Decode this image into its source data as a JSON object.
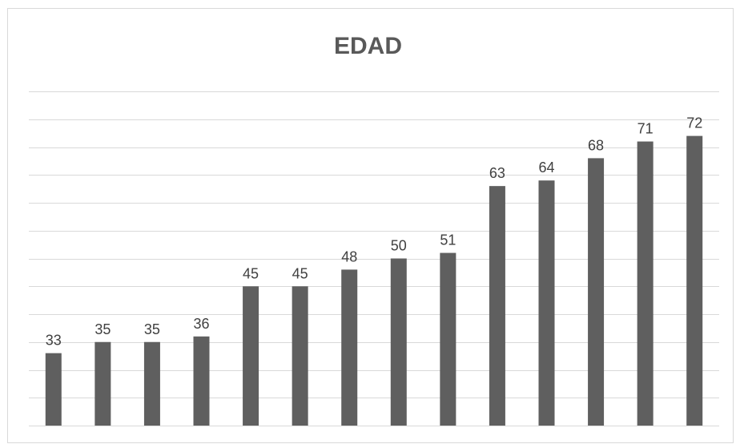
{
  "chart_data": {
    "type": "bar",
    "title": "EDAD",
    "categories": [
      "",
      "",
      "",
      "",
      "",
      "",
      "",
      "",
      "",
      "",
      "",
      "",
      "",
      ""
    ],
    "values": [
      33,
      35,
      35,
      36,
      45,
      45,
      48,
      50,
      51,
      63,
      64,
      68,
      71,
      72
    ],
    "xlabel": "",
    "ylabel": "",
    "ylim": [
      20,
      80
    ],
    "grid": true,
    "data_labels": true,
    "bar_color": "#5f5f5f",
    "grid_color": "#d9d9d9",
    "title_color": "#595959",
    "label_color": "#404040"
  }
}
